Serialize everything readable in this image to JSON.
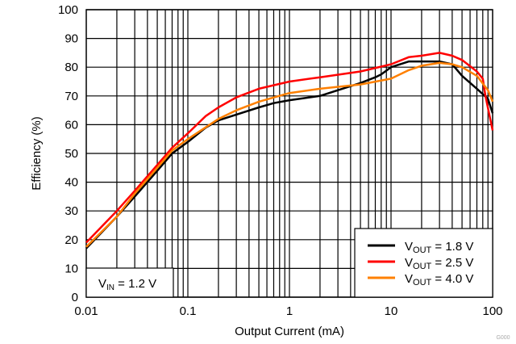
{
  "chart_data": {
    "type": "line",
    "title": "",
    "xlabel": "Output Current (mA)",
    "ylabel": "Efficiency (%)",
    "xscale": "log",
    "xlim": [
      0.01,
      100
    ],
    "ylim": [
      0,
      100
    ],
    "grid": true,
    "legend_placement": "bottom-right",
    "x_tick_labels": [
      "0.01",
      "0.1",
      "1",
      "10",
      "100"
    ],
    "x_ticks": [
      0.01,
      0.1,
      1,
      10,
      100
    ],
    "y_ticks": [
      0,
      10,
      20,
      30,
      40,
      50,
      60,
      70,
      80,
      90,
      100
    ],
    "annotation": {
      "main": "V",
      "sub": "IN",
      "rest": " = 1.2 V"
    },
    "watermark": "G000",
    "series": [
      {
        "name": "VOUT = 1.8 V",
        "label_main": "V",
        "label_sub": "OUT",
        "label_rest": " = 1.8 V",
        "color": "#000000",
        "x": [
          0.01,
          0.02,
          0.03,
          0.05,
          0.07,
          0.1,
          0.15,
          0.2,
          0.3,
          0.5,
          0.7,
          1,
          2,
          3,
          5,
          7,
          8,
          10,
          15,
          20,
          30,
          40,
          50,
          70,
          90,
          100
        ],
        "y": [
          17,
          28,
          35,
          44,
          50,
          54,
          59,
          61.5,
          63.5,
          66,
          67.5,
          68.5,
          70,
          72,
          74.5,
          76.5,
          77.5,
          80,
          82,
          82,
          82,
          81,
          77,
          72.5,
          69,
          64
        ]
      },
      {
        "name": "VOUT = 2.5 V",
        "label_main": "V",
        "label_sub": "OUT",
        "label_rest": " = 2.5 V",
        "color": "#ff0000",
        "x": [
          0.01,
          0.02,
          0.03,
          0.05,
          0.07,
          0.1,
          0.15,
          0.2,
          0.3,
          0.5,
          1,
          2,
          5,
          10,
          15,
          20,
          30,
          40,
          50,
          70,
          80,
          85,
          100
        ],
        "y": [
          19,
          30,
          37,
          46,
          52,
          57,
          63,
          66,
          69.5,
          72.5,
          75,
          76.5,
          78.5,
          81,
          83.5,
          84,
          85,
          84,
          82.5,
          78.5,
          76,
          70,
          58
        ]
      },
      {
        "name": "VOUT = 4.0 V",
        "label_main": "V",
        "label_sub": "OUT",
        "label_rest": " = 4.0 V",
        "color": "#ff8000",
        "x": [
          0.01,
          0.02,
          0.03,
          0.05,
          0.07,
          0.1,
          0.2,
          0.3,
          0.5,
          1,
          2,
          5,
          10,
          15,
          20,
          30,
          40,
          50,
          70,
          90,
          100
        ],
        "y": [
          17.5,
          28,
          36,
          45,
          51,
          55,
          62,
          65,
          68,
          71,
          72.5,
          74,
          76,
          79,
          80.5,
          81.5,
          81,
          80,
          77,
          72,
          68
        ]
      }
    ]
  }
}
